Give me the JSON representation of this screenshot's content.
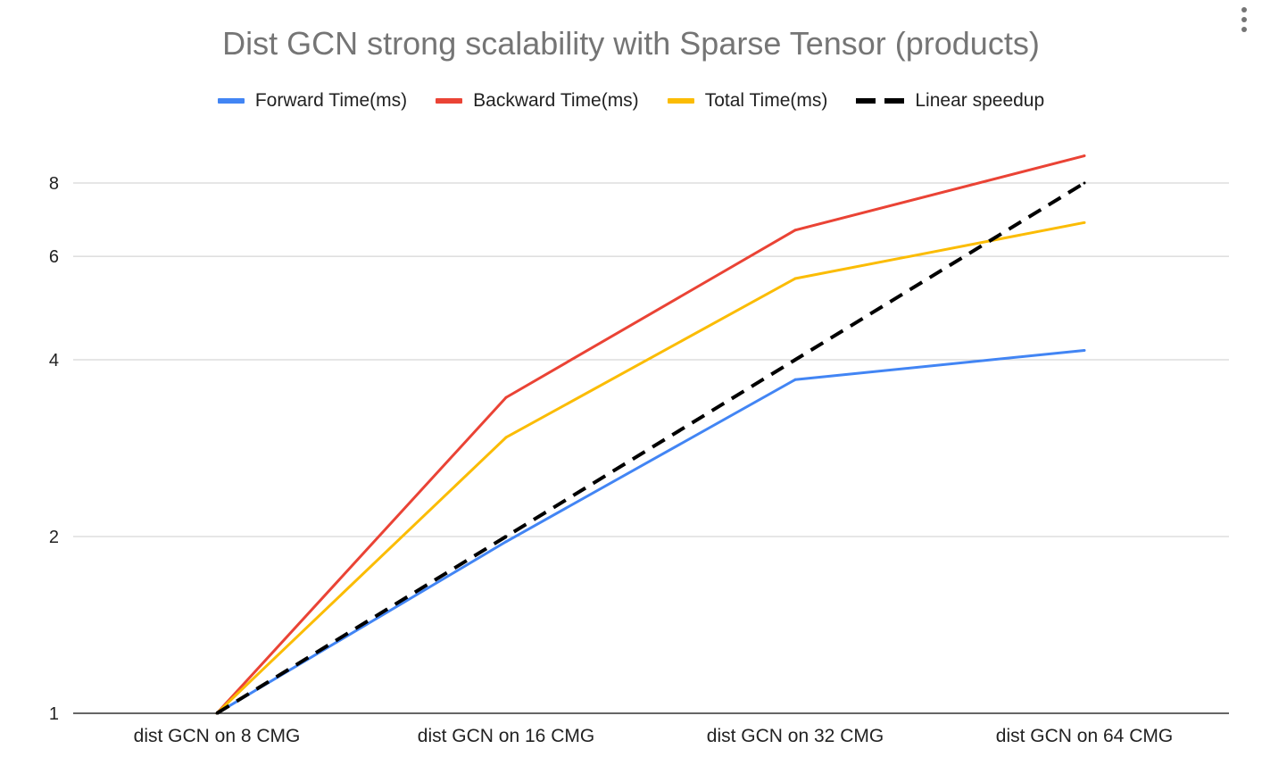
{
  "chart_data": {
    "type": "line",
    "title": "Dist GCN strong scalability with Sparse Tensor (products)",
    "xlabel": "",
    "ylabel": "",
    "y_scale": "log2",
    "ylim": [
      1,
      8.8
    ],
    "yticks": [
      1,
      2,
      4,
      6,
      8
    ],
    "ytick_labels": [
      "1",
      "2",
      "4",
      "6",
      "8"
    ],
    "grid": true,
    "legend_position": "top",
    "categories": [
      "dist GCN on 8 CMG",
      "dist GCN on 16 CMG",
      "dist GCN on 32 CMG",
      "dist GCN on 64 CMG"
    ],
    "series": [
      {
        "name": "Forward Time(ms)",
        "color": "#4285f4",
        "dashed": false,
        "values": [
          1.0,
          1.96,
          3.7,
          4.15
        ]
      },
      {
        "name": "Backward Time(ms)",
        "color": "#ea4335",
        "dashed": false,
        "values": [
          1.0,
          3.45,
          6.65,
          8.9
        ]
      },
      {
        "name": "Total Time(ms)",
        "color": "#fbbc04",
        "dashed": false,
        "values": [
          1.0,
          2.95,
          5.5,
          6.85
        ]
      },
      {
        "name": "Linear speedup",
        "color": "#000000",
        "dashed": true,
        "values": [
          1,
          2,
          4,
          8
        ]
      }
    ]
  }
}
